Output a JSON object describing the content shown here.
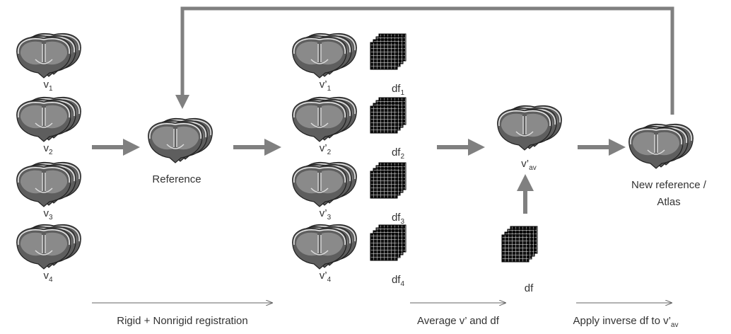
{
  "inputs": [
    {
      "label": "v",
      "sub": "1"
    },
    {
      "label": "v",
      "sub": "2"
    },
    {
      "label": "v",
      "sub": "3"
    },
    {
      "label": "v",
      "sub": "4"
    }
  ],
  "reference": {
    "label": "Reference"
  },
  "registered": [
    {
      "label": "v’",
      "sub": "1"
    },
    {
      "label": "v’",
      "sub": "2"
    },
    {
      "label": "v’",
      "sub": "3"
    },
    {
      "label": "v’",
      "sub": "4"
    }
  ],
  "fields": [
    {
      "label": "df",
      "sub": "1"
    },
    {
      "label": "df",
      "sub": "2"
    },
    {
      "label": "df",
      "sub": "3"
    },
    {
      "label": "df",
      "sub": "4"
    }
  ],
  "average": {
    "label": "v’",
    "sub": "av"
  },
  "mean_field": {
    "label": "df"
  },
  "new_reference": {
    "lines": [
      "New reference /",
      "Atlas"
    ]
  },
  "steps": [
    {
      "text": "Rigid + Nonrigid registration"
    },
    {
      "text": "Average v’ and df"
    },
    {
      "text": "Apply inverse df to v’",
      "sub": "av"
    }
  ]
}
